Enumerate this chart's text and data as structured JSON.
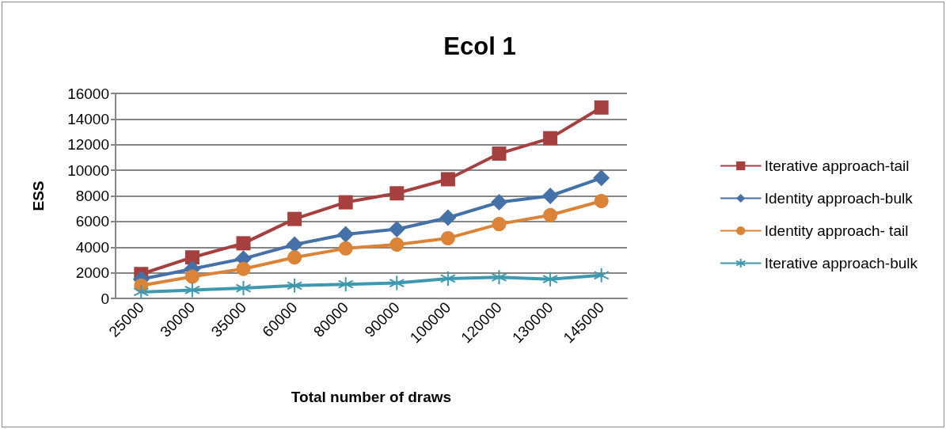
{
  "chart_data": {
    "type": "line",
    "title": "Ecol 1",
    "xlabel": "Total number of draws",
    "ylabel": "ESS",
    "categories": [
      "25000",
      "30000",
      "35000",
      "60000",
      "80000",
      "90000",
      "100000",
      "120000",
      "130000",
      "145000"
    ],
    "series": [
      {
        "name": "Iterative approach-tail",
        "color": "#a5403e",
        "marker": "square",
        "values": [
          1900,
          3200,
          4300,
          6200,
          7500,
          8200,
          9300,
          11300,
          12500,
          14900
        ]
      },
      {
        "name": "Identity approach-bulk",
        "color": "#4471a7",
        "marker": "diamond",
        "values": [
          1500,
          2300,
          3100,
          4200,
          5000,
          5400,
          6300,
          7500,
          8000,
          9400
        ]
      },
      {
        "name": "Identity approach- tail",
        "color": "#db8337",
        "marker": "circle",
        "values": [
          1000,
          1700,
          2300,
          3200,
          3900,
          4200,
          4700,
          5800,
          6500,
          7600
        ]
      },
      {
        "name": "Iterative approach-bulk",
        "color": "#3f99ae",
        "marker": "cross",
        "values": [
          500,
          650,
          800,
          1000,
          1100,
          1200,
          1550,
          1650,
          1500,
          1800
        ]
      }
    ],
    "ylim": [
      0,
      16000
    ],
    "yticks": [
      0,
      2000,
      4000,
      6000,
      8000,
      10000,
      12000,
      14000,
      16000
    ],
    "grid": "y",
    "legend": "right",
    "line_style": "solid"
  }
}
